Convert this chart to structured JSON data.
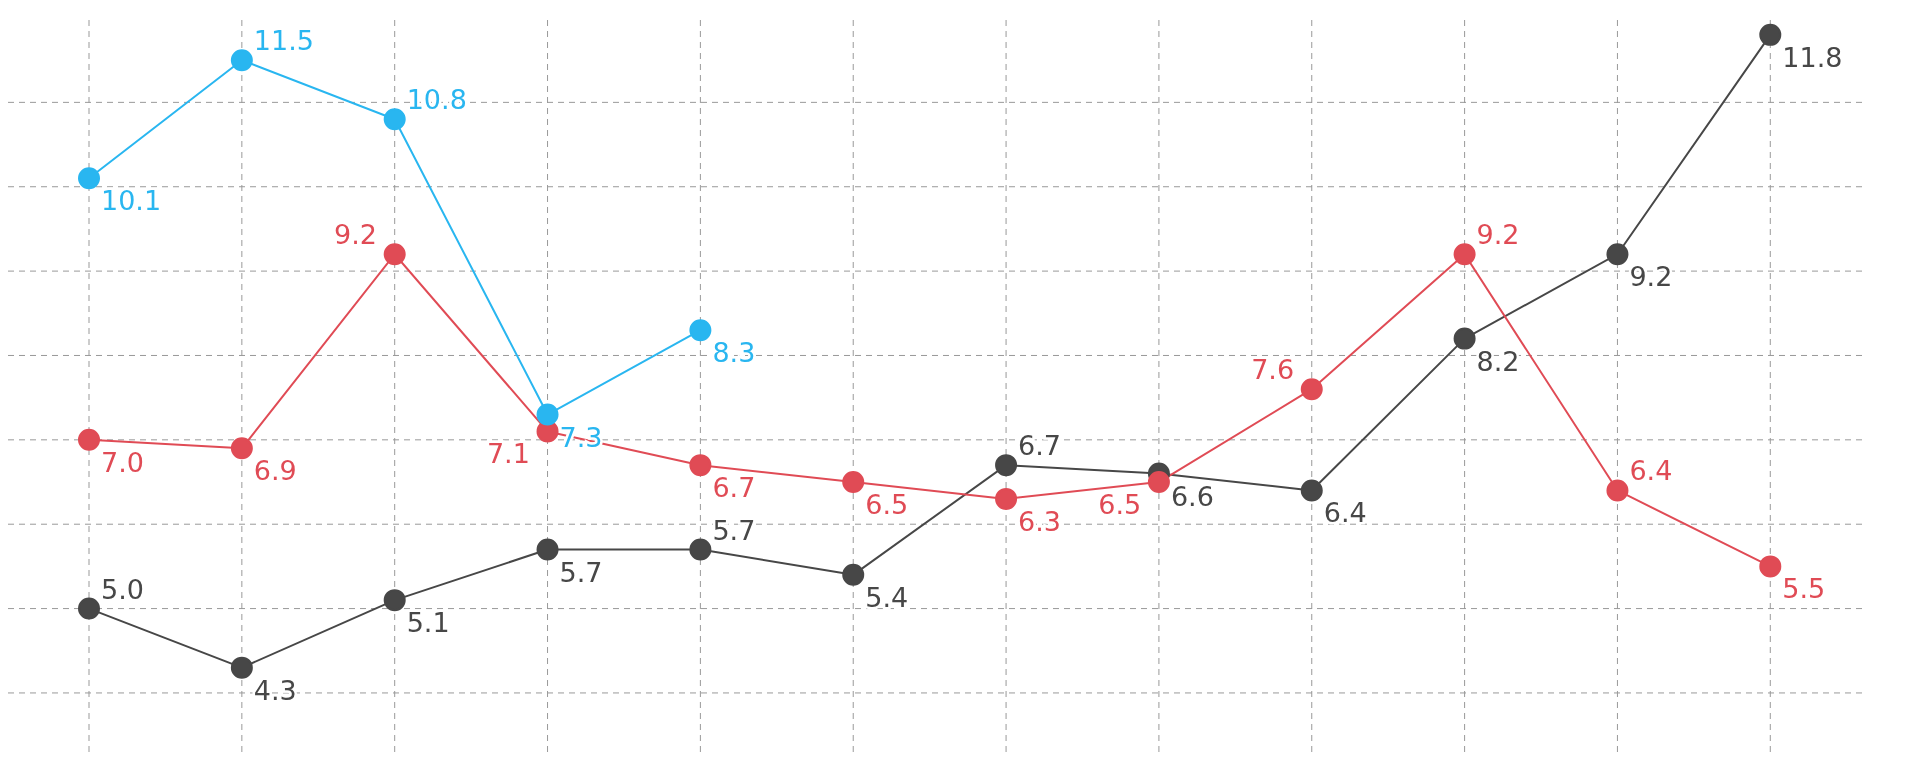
{
  "chart_data": {
    "type": "line",
    "categories": [
      null,
      null,
      null,
      null,
      null,
      null,
      null,
      null,
      null,
      null,
      null,
      null
    ],
    "series": [
      {
        "color": "#474747",
        "values": [
          5.0,
          4.3,
          5.1,
          5.7,
          5.7,
          5.4,
          6.7,
          6.6,
          6.4,
          8.2,
          9.2,
          11.8
        ],
        "value_labels": [
          "5.0",
          "4.3",
          "5.1",
          "5.7",
          "5.7",
          "5.4",
          "6.7",
          "6.6",
          "6.4",
          "8.2",
          "9.2",
          "11.8"
        ]
      },
      {
        "color": "#e04b55",
        "values": [
          7.0,
          6.9,
          9.2,
          7.1,
          6.7,
          6.5,
          6.3,
          6.5,
          7.6,
          9.2,
          6.4,
          5.5
        ],
        "value_labels": [
          "7.0",
          "6.9",
          "9.2",
          "7.1",
          "6.7",
          "6.5",
          "6.3",
          "6.5",
          "7.6",
          "9.2",
          "6.4",
          "5.5"
        ]
      },
      {
        "color": "#29b6f0",
        "values": [
          10.1,
          11.5,
          10.8,
          7.3,
          8.3,
          null,
          null,
          null,
          null,
          null,
          null,
          null
        ],
        "value_labels": [
          "10.1",
          "11.5",
          "10.8",
          "7.3",
          "8.3",
          null,
          null,
          null,
          null,
          null,
          null,
          null
        ]
      }
    ],
    "ylim": [
      3.3,
      12.0
    ],
    "yticks": [
      {
        "value": 4,
        "label": null
      },
      {
        "value": 5,
        "label": null
      },
      {
        "value": 6,
        "label": null
      },
      {
        "value": 7,
        "label": null
      },
      {
        "value": 8,
        "label": null
      },
      {
        "value": 9,
        "label": null
      },
      {
        "value": 10,
        "label": null
      },
      {
        "value": 11,
        "label": null
      }
    ],
    "grid": true,
    "marker": "circle",
    "line_style": "solid"
  }
}
